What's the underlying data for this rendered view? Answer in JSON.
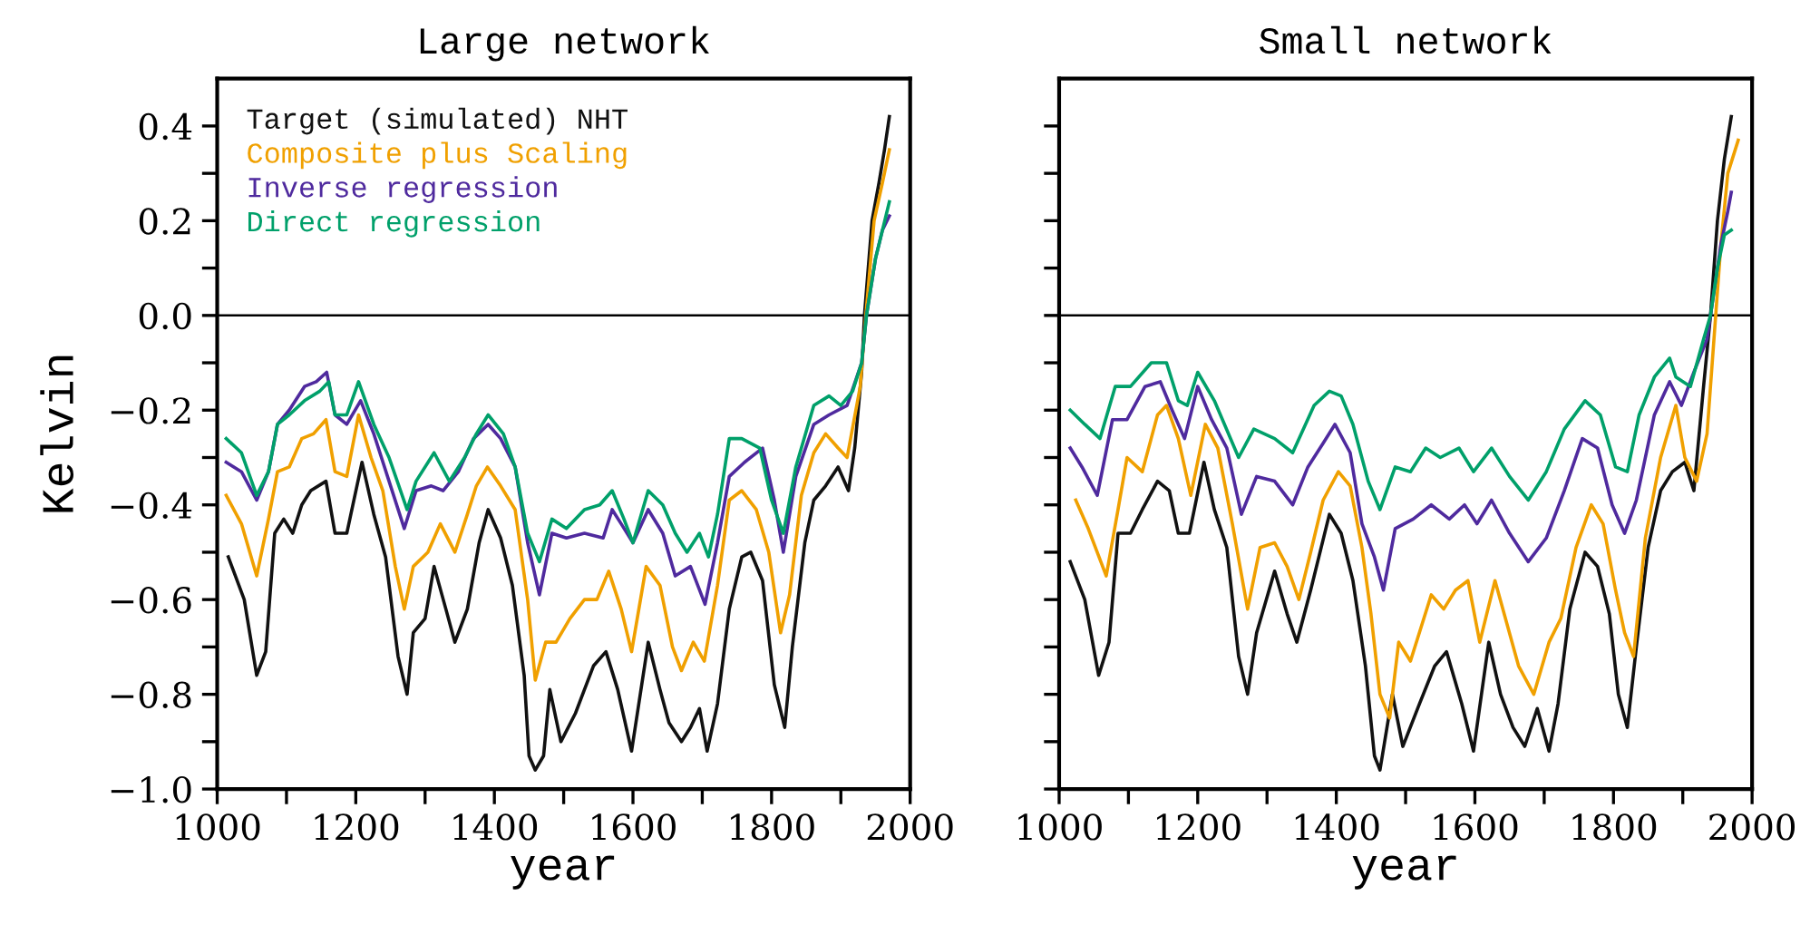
{
  "chart_data": [
    {
      "type": "line",
      "title": "Large network",
      "xlabel": "year",
      "ylabel": "Kelvin",
      "legend": "top left",
      "grid": false,
      "xlim": [
        1000,
        2000
      ],
      "ylim": [
        -1.0,
        0.5
      ],
      "xticks": [
        1000,
        {
          "value": 1100,
          "label": null
        },
        1200,
        {
          "value": 1300,
          "label": null
        },
        1400,
        {
          "value": 1500,
          "label": null
        },
        1600,
        {
          "value": 1700,
          "label": null
        },
        1800,
        {
          "value": 1900,
          "label": null
        },
        2000
      ],
      "yticks": [
        {
          "value": -1.0,
          "label": "−1.0"
        },
        {
          "value": -0.9,
          "label": null
        },
        {
          "value": -0.8,
          "label": "−0.8"
        },
        {
          "value": -0.7,
          "label": null
        },
        {
          "value": -0.6,
          "label": "−0.6"
        },
        {
          "value": -0.5,
          "label": null
        },
        {
          "value": -0.4,
          "label": "−0.4"
        },
        {
          "value": -0.3,
          "label": null
        },
        {
          "value": -0.2,
          "label": "−0.2"
        },
        {
          "value": -0.1,
          "label": null
        },
        {
          "value": 0.0,
          "label": "0.0"
        },
        {
          "value": 0.1,
          "label": null
        },
        0.2,
        {
          "value": 0.3,
          "label": null
        },
        0.4
      ],
      "ref_lines": [
        {
          "axis": "y",
          "value": 0.0,
          "color": "#000000"
        }
      ],
      "series": [
        {
          "name": "Target (simulated) NHT",
          "color": "#111111",
          "x": [
            1016,
            1039,
            1057,
            1070,
            1083,
            1096,
            1109,
            1122,
            1135,
            1157,
            1170,
            1187,
            1209,
            1226,
            1243,
            1261,
            1274,
            1283,
            1300,
            1313,
            1330,
            1343,
            1361,
            1378,
            1391,
            1409,
            1426,
            1443,
            1450,
            1459,
            1471,
            1480,
            1496,
            1517,
            1543,
            1561,
            1578,
            1598,
            1622,
            1639,
            1652,
            1670,
            1683,
            1696,
            1707,
            1722,
            1739,
            1757,
            1770,
            1787,
            1804,
            1819,
            1830,
            1848,
            1861,
            1878,
            1896,
            1911,
            1920,
            1930,
            1934,
            1945,
            1955,
            1963,
            1970
          ],
          "values": [
            -0.51,
            -0.6,
            -0.76,
            -0.71,
            -0.46,
            -0.43,
            -0.46,
            -0.4,
            -0.37,
            -0.35,
            -0.46,
            -0.46,
            -0.31,
            -0.42,
            -0.51,
            -0.72,
            -0.8,
            -0.67,
            -0.64,
            -0.53,
            -0.62,
            -0.69,
            -0.62,
            -0.48,
            -0.41,
            -0.47,
            -0.57,
            -0.76,
            -0.93,
            -0.96,
            -0.93,
            -0.79,
            -0.9,
            -0.84,
            -0.74,
            -0.71,
            -0.79,
            -0.92,
            -0.69,
            -0.79,
            -0.86,
            -0.9,
            -0.87,
            -0.83,
            -0.92,
            -0.82,
            -0.62,
            -0.51,
            -0.5,
            -0.56,
            -0.78,
            -0.87,
            -0.7,
            -0.48,
            -0.39,
            -0.36,
            -0.32,
            -0.37,
            -0.28,
            -0.12,
            0.0,
            0.2,
            0.28,
            0.35,
            0.42
          ]
        },
        {
          "name": "Composite plus Scaling",
          "color": "#f0a000",
          "x": [
            1013,
            1035,
            1057,
            1074,
            1087,
            1104,
            1122,
            1139,
            1157,
            1170,
            1187,
            1204,
            1222,
            1239,
            1257,
            1270,
            1283,
            1304,
            1322,
            1343,
            1361,
            1374,
            1390,
            1409,
            1430,
            1448,
            1459,
            1474,
            1489,
            1509,
            1530,
            1548,
            1565,
            1583,
            1598,
            1619,
            1639,
            1657,
            1670,
            1687,
            1703,
            1722,
            1739,
            1757,
            1778,
            1796,
            1813,
            1826,
            1843,
            1861,
            1878,
            1896,
            1909,
            1928,
            1936,
            1948,
            1960,
            1970
          ],
          "values": [
            -0.38,
            -0.44,
            -0.55,
            -0.43,
            -0.33,
            -0.32,
            -0.26,
            -0.25,
            -0.22,
            -0.33,
            -0.34,
            -0.21,
            -0.3,
            -0.37,
            -0.53,
            -0.62,
            -0.53,
            -0.5,
            -0.44,
            -0.5,
            -0.42,
            -0.36,
            -0.32,
            -0.36,
            -0.41,
            -0.6,
            -0.77,
            -0.69,
            -0.69,
            -0.64,
            -0.6,
            -0.6,
            -0.54,
            -0.62,
            -0.71,
            -0.53,
            -0.57,
            -0.7,
            -0.75,
            -0.69,
            -0.73,
            -0.57,
            -0.39,
            -0.37,
            -0.41,
            -0.5,
            -0.67,
            -0.59,
            -0.38,
            -0.29,
            -0.25,
            -0.28,
            -0.3,
            -0.15,
            0.0,
            0.2,
            0.28,
            0.35
          ]
        },
        {
          "name": "Inverse regression",
          "color": "#4f2a9e",
          "x": [
            1013,
            1035,
            1057,
            1074,
            1087,
            1104,
            1126,
            1143,
            1158,
            1170,
            1187,
            1207,
            1226,
            1248,
            1270,
            1287,
            1309,
            1326,
            1348,
            1370,
            1391,
            1409,
            1430,
            1448,
            1465,
            1483,
            1504,
            1530,
            1557,
            1570,
            1583,
            1600,
            1622,
            1643,
            1661,
            1683,
            1704,
            1722,
            1739,
            1761,
            1787,
            1804,
            1817,
            1835,
            1861,
            1883,
            1909,
            1930,
            1937,
            1950,
            1960,
            1970
          ],
          "values": [
            -0.31,
            -0.33,
            -0.39,
            -0.33,
            -0.23,
            -0.2,
            -0.15,
            -0.14,
            -0.12,
            -0.21,
            -0.23,
            -0.18,
            -0.25,
            -0.35,
            -0.45,
            -0.37,
            -0.36,
            -0.37,
            -0.33,
            -0.26,
            -0.23,
            -0.26,
            -0.32,
            -0.48,
            -0.59,
            -0.46,
            -0.47,
            -0.46,
            -0.47,
            -0.41,
            -0.44,
            -0.48,
            -0.41,
            -0.46,
            -0.55,
            -0.53,
            -0.61,
            -0.48,
            -0.34,
            -0.31,
            -0.28,
            -0.39,
            -0.5,
            -0.34,
            -0.23,
            -0.21,
            -0.19,
            -0.1,
            0.0,
            0.12,
            0.18,
            0.21
          ]
        },
        {
          "name": "Direct regression",
          "color": "#00a06a",
          "x": [
            1013,
            1035,
            1057,
            1074,
            1087,
            1104,
            1126,
            1148,
            1161,
            1170,
            1187,
            1204,
            1226,
            1248,
            1274,
            1287,
            1313,
            1335,
            1357,
            1374,
            1391,
            1413,
            1430,
            1448,
            1465,
            1483,
            1504,
            1530,
            1552,
            1570,
            1587,
            1600,
            1622,
            1643,
            1661,
            1678,
            1696,
            1709,
            1722,
            1739,
            1757,
            1783,
            1800,
            1817,
            1835,
            1861,
            1883,
            1900,
            1917,
            1930,
            1937,
            1950,
            1960,
            1970
          ],
          "values": [
            -0.26,
            -0.29,
            -0.38,
            -0.33,
            -0.23,
            -0.21,
            -0.18,
            -0.16,
            -0.14,
            -0.21,
            -0.21,
            -0.14,
            -0.23,
            -0.3,
            -0.41,
            -0.35,
            -0.29,
            -0.35,
            -0.3,
            -0.25,
            -0.21,
            -0.25,
            -0.32,
            -0.46,
            -0.52,
            -0.43,
            -0.45,
            -0.41,
            -0.4,
            -0.37,
            -0.43,
            -0.48,
            -0.37,
            -0.4,
            -0.46,
            -0.5,
            -0.46,
            -0.51,
            -0.42,
            -0.26,
            -0.26,
            -0.28,
            -0.39,
            -0.46,
            -0.32,
            -0.19,
            -0.17,
            -0.19,
            -0.16,
            -0.1,
            0.0,
            0.12,
            0.18,
            0.24
          ]
        }
      ]
    },
    {
      "type": "line",
      "title": "Small network",
      "xlabel": "year",
      "grid": false,
      "tick_labels": "x",
      "xlim": [
        1000,
        2000
      ],
      "ylim": [
        -1.0,
        0.5
      ],
      "xticks": [
        1000,
        {
          "value": 1100,
          "label": null
        },
        1200,
        {
          "value": 1300,
          "label": null
        },
        1400,
        {
          "value": 1500,
          "label": null
        },
        1600,
        {
          "value": 1700,
          "label": null
        },
        1800,
        {
          "value": 1900,
          "label": null
        },
        2000
      ],
      "yticks": [
        {
          "value": -1.0,
          "label": null
        },
        {
          "value": -0.9,
          "label": null
        },
        {
          "value": -0.8,
          "label": null
        },
        {
          "value": -0.7,
          "label": null
        },
        {
          "value": -0.6,
          "label": null
        },
        {
          "value": -0.5,
          "label": null
        },
        {
          "value": -0.4,
          "label": null
        },
        {
          "value": -0.3,
          "label": null
        },
        {
          "value": -0.2,
          "label": null
        },
        {
          "value": -0.1,
          "label": null
        },
        {
          "value": 0.0,
          "label": null
        },
        {
          "value": 0.1,
          "label": null
        },
        {
          "value": 0.2,
          "label": null
        },
        {
          "value": 0.3,
          "label": null
        },
        {
          "value": 0.4,
          "label": null
        }
      ],
      "ref_lines": [
        {
          "axis": "y",
          "value": 0.0,
          "color": "#000000"
        }
      ],
      "series": [
        {
          "color": "#111111",
          "x": [
            1016,
            1037,
            1057,
            1072,
            1085,
            1103,
            1120,
            1142,
            1159,
            1172,
            1188,
            1209,
            1224,
            1242,
            1259,
            1272,
            1285,
            1311,
            1329,
            1343,
            1363,
            1390,
            1407,
            1424,
            1442,
            1455,
            1463,
            1481,
            1496,
            1520,
            1542,
            1559,
            1581,
            1598,
            1620,
            1637,
            1655,
            1672,
            1690,
            1707,
            1720,
            1737,
            1759,
            1777,
            1794,
            1807,
            1820,
            1833,
            1850,
            1868,
            1885,
            1903,
            1916,
            1930,
            1940,
            1950,
            1960,
            1970
          ],
          "values": [
            -0.52,
            -0.6,
            -0.76,
            -0.69,
            -0.46,
            -0.46,
            -0.41,
            -0.35,
            -0.37,
            -0.46,
            -0.46,
            -0.31,
            -0.41,
            -0.49,
            -0.72,
            -0.8,
            -0.67,
            -0.54,
            -0.63,
            -0.69,
            -0.58,
            -0.42,
            -0.46,
            -0.56,
            -0.74,
            -0.93,
            -0.96,
            -0.8,
            -0.91,
            -0.82,
            -0.74,
            -0.71,
            -0.82,
            -0.92,
            -0.69,
            -0.8,
            -0.87,
            -0.91,
            -0.83,
            -0.92,
            -0.82,
            -0.62,
            -0.5,
            -0.53,
            -0.63,
            -0.8,
            -0.87,
            -0.7,
            -0.49,
            -0.37,
            -0.33,
            -0.31,
            -0.37,
            -0.15,
            0.0,
            0.2,
            0.33,
            0.42
          ]
        },
        {
          "color": "#f0a000",
          "x": [
            1024,
            1042,
            1068,
            1085,
            1098,
            1120,
            1142,
            1155,
            1172,
            1190,
            1211,
            1229,
            1250,
            1272,
            1290,
            1311,
            1329,
            1346,
            1363,
            1381,
            1403,
            1420,
            1437,
            1450,
            1463,
            1477,
            1490,
            1507,
            1537,
            1555,
            1572,
            1590,
            1607,
            1629,
            1646,
            1663,
            1685,
            1707,
            1724,
            1746,
            1768,
            1785,
            1803,
            1816,
            1829,
            1846,
            1868,
            1890,
            1903,
            1920,
            1935,
            1945,
            1955,
            1965,
            1980
          ],
          "values": [
            -0.39,
            -0.45,
            -0.55,
            -0.41,
            -0.3,
            -0.33,
            -0.21,
            -0.19,
            -0.26,
            -0.38,
            -0.23,
            -0.28,
            -0.44,
            -0.62,
            -0.49,
            -0.48,
            -0.53,
            -0.6,
            -0.5,
            -0.39,
            -0.33,
            -0.36,
            -0.49,
            -0.63,
            -0.8,
            -0.85,
            -0.69,
            -0.73,
            -0.59,
            -0.62,
            -0.58,
            -0.56,
            -0.69,
            -0.56,
            -0.65,
            -0.74,
            -0.8,
            -0.69,
            -0.64,
            -0.49,
            -0.4,
            -0.44,
            -0.58,
            -0.67,
            -0.72,
            -0.47,
            -0.3,
            -0.19,
            -0.3,
            -0.35,
            -0.25,
            -0.05,
            0.15,
            0.3,
            0.37
          ]
        },
        {
          "color": "#4f2a9e",
          "x": [
            1016,
            1033,
            1055,
            1077,
            1098,
            1124,
            1146,
            1163,
            1181,
            1200,
            1220,
            1242,
            1263,
            1285,
            1311,
            1337,
            1359,
            1381,
            1398,
            1420,
            1437,
            1455,
            1468,
            1485,
            1511,
            1537,
            1563,
            1585,
            1603,
            1624,
            1650,
            1677,
            1703,
            1729,
            1755,
            1777,
            1798,
            1816,
            1833,
            1859,
            1881,
            1898,
            1916,
            1935,
            1945,
            1955,
            1965,
            1970
          ],
          "values": [
            -0.28,
            -0.32,
            -0.38,
            -0.22,
            -0.22,
            -0.15,
            -0.14,
            -0.2,
            -0.26,
            -0.15,
            -0.22,
            -0.28,
            -0.42,
            -0.34,
            -0.35,
            -0.4,
            -0.32,
            -0.27,
            -0.23,
            -0.29,
            -0.44,
            -0.51,
            -0.58,
            -0.45,
            -0.43,
            -0.4,
            -0.43,
            -0.4,
            -0.44,
            -0.39,
            -0.46,
            -0.52,
            -0.47,
            -0.37,
            -0.26,
            -0.28,
            -0.4,
            -0.46,
            -0.39,
            -0.21,
            -0.14,
            -0.19,
            -0.12,
            -0.05,
            0.05,
            0.15,
            0.22,
            0.26
          ]
        },
        {
          "color": "#00a06a",
          "x": [
            1016,
            1037,
            1059,
            1081,
            1103,
            1133,
            1155,
            1172,
            1185,
            1200,
            1224,
            1259,
            1281,
            1311,
            1337,
            1368,
            1390,
            1407,
            1424,
            1446,
            1463,
            1485,
            1507,
            1529,
            1550,
            1577,
            1598,
            1624,
            1650,
            1677,
            1703,
            1729,
            1759,
            1781,
            1803,
            1820,
            1837,
            1859,
            1881,
            1890,
            1911,
            1930,
            1940,
            1950,
            1960,
            1970
          ],
          "values": [
            -0.2,
            -0.23,
            -0.26,
            -0.15,
            -0.15,
            -0.1,
            -0.1,
            -0.18,
            -0.19,
            -0.12,
            -0.18,
            -0.3,
            -0.24,
            -0.26,
            -0.29,
            -0.19,
            -0.16,
            -0.17,
            -0.23,
            -0.35,
            -0.41,
            -0.32,
            -0.33,
            -0.28,
            -0.3,
            -0.28,
            -0.33,
            -0.28,
            -0.34,
            -0.39,
            -0.33,
            -0.24,
            -0.18,
            -0.21,
            -0.32,
            -0.33,
            -0.21,
            -0.13,
            -0.09,
            -0.13,
            -0.15,
            -0.05,
            0.0,
            0.1,
            0.17,
            0.18
          ]
        }
      ]
    }
  ]
}
